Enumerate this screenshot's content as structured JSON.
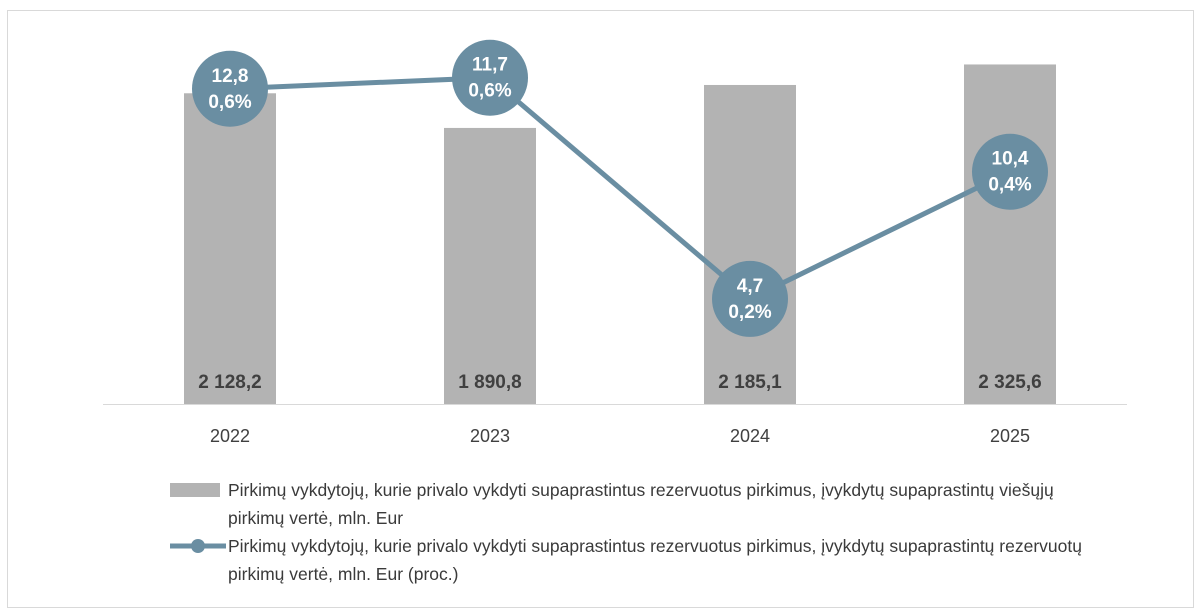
{
  "chart_data": {
    "type": "bar-line",
    "categories": [
      "2022",
      "2023",
      "2024",
      "2025"
    ],
    "ylim": [
      0,
      2500
    ],
    "y2lim": [
      0.03,
      0.69
    ],
    "series": [
      {
        "name": "Pirkimų vykdytojų, kurie privalo vykdyti supaprastintus rezervuotus pirkimus, įvykdytų supaprastintų viešųjų pirkimų vertė, mln. Eur",
        "type": "bar",
        "color": "#b3b3b3",
        "values": [
          2128.2,
          1890.8,
          2185.1,
          2325.6
        ],
        "value_labels": [
          "2 128,2",
          "1 890,8",
          "2 185,1",
          "2 325,6"
        ]
      },
      {
        "name": "Pirkimų vykdytojų, kurie privalo vykdyti supaprastintus rezervuotus pirkimus, įvykdytų supaprastintų rezervuotų pirkimų vertė, mln. Eur (proc.)",
        "type": "line",
        "axis": "y2",
        "color": "#6a8ea2",
        "values": [
          0.6,
          0.62,
          0.22,
          0.45
        ],
        "value_labels": [
          "0,6%",
          "0,6%",
          "0,2%",
          "0,4%"
        ],
        "amounts": [
          12.8,
          11.7,
          4.7,
          10.4
        ],
        "amount_labels": [
          "12,8",
          "11,7",
          "4,7",
          "10,4"
        ]
      }
    ]
  }
}
